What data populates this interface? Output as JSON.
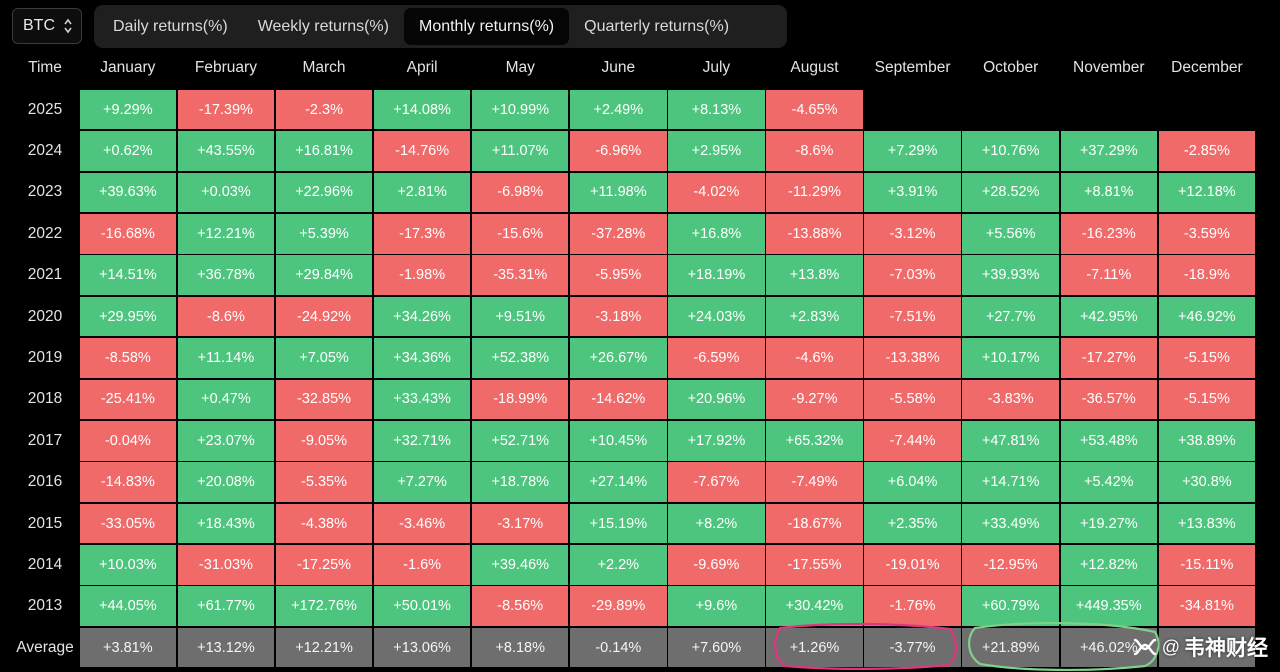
{
  "asset_selector": {
    "value": "BTC"
  },
  "tabs": [
    {
      "label": "Daily returns(%)",
      "active": false
    },
    {
      "label": "Weekly returns(%)",
      "active": false
    },
    {
      "label": "Monthly returns(%)",
      "active": true
    },
    {
      "label": "Quarterly returns(%)",
      "active": false
    }
  ],
  "table": {
    "time_header": "Time",
    "months": [
      "January",
      "February",
      "March",
      "April",
      "May",
      "June",
      "July",
      "August",
      "September",
      "October",
      "November",
      "December"
    ],
    "rows": [
      {
        "year": "2025",
        "values": [
          "+9.29%",
          "-17.39%",
          "-2.3%",
          "+14.08%",
          "+10.99%",
          "+2.49%",
          "+8.13%",
          "-4.65%",
          "",
          "",
          "",
          ""
        ]
      },
      {
        "year": "2024",
        "values": [
          "+0.62%",
          "+43.55%",
          "+16.81%",
          "-14.76%",
          "+11.07%",
          "-6.96%",
          "+2.95%",
          "-8.6%",
          "+7.29%",
          "+10.76%",
          "+37.29%",
          "-2.85%"
        ]
      },
      {
        "year": "2023",
        "values": [
          "+39.63%",
          "+0.03%",
          "+22.96%",
          "+2.81%",
          "-6.98%",
          "+11.98%",
          "-4.02%",
          "-11.29%",
          "+3.91%",
          "+28.52%",
          "+8.81%",
          "+12.18%"
        ]
      },
      {
        "year": "2022",
        "values": [
          "-16.68%",
          "+12.21%",
          "+5.39%",
          "-17.3%",
          "-15.6%",
          "-37.28%",
          "+16.8%",
          "-13.88%",
          "-3.12%",
          "+5.56%",
          "-16.23%",
          "-3.59%"
        ]
      },
      {
        "year": "2021",
        "values": [
          "+14.51%",
          "+36.78%",
          "+29.84%",
          "-1.98%",
          "-35.31%",
          "-5.95%",
          "+18.19%",
          "+13.8%",
          "-7.03%",
          "+39.93%",
          "-7.11%",
          "-18.9%"
        ]
      },
      {
        "year": "2020",
        "values": [
          "+29.95%",
          "-8.6%",
          "-24.92%",
          "+34.26%",
          "+9.51%",
          "-3.18%",
          "+24.03%",
          "+2.83%",
          "-7.51%",
          "+27.7%",
          "+42.95%",
          "+46.92%"
        ]
      },
      {
        "year": "2019",
        "values": [
          "-8.58%",
          "+11.14%",
          "+7.05%",
          "+34.36%",
          "+52.38%",
          "+26.67%",
          "-6.59%",
          "-4.6%",
          "-13.38%",
          "+10.17%",
          "-17.27%",
          "-5.15%"
        ]
      },
      {
        "year": "2018",
        "values": [
          "-25.41%",
          "+0.47%",
          "-32.85%",
          "+33.43%",
          "-18.99%",
          "-14.62%",
          "+20.96%",
          "-9.27%",
          "-5.58%",
          "-3.83%",
          "-36.57%",
          "-5.15%"
        ]
      },
      {
        "year": "2017",
        "values": [
          "-0.04%",
          "+23.07%",
          "-9.05%",
          "+32.71%",
          "+52.71%",
          "+10.45%",
          "+17.92%",
          "+65.32%",
          "-7.44%",
          "+47.81%",
          "+53.48%",
          "+38.89%"
        ]
      },
      {
        "year": "2016",
        "values": [
          "-14.83%",
          "+20.08%",
          "-5.35%",
          "+7.27%",
          "+18.78%",
          "+27.14%",
          "-7.67%",
          "-7.49%",
          "+6.04%",
          "+14.71%",
          "+5.42%",
          "+30.8%"
        ]
      },
      {
        "year": "2015",
        "values": [
          "-33.05%",
          "+18.43%",
          "-4.38%",
          "-3.46%",
          "-3.17%",
          "+15.19%",
          "+8.2%",
          "-18.67%",
          "+2.35%",
          "+33.49%",
          "+19.27%",
          "+13.83%"
        ]
      },
      {
        "year": "2014",
        "values": [
          "+10.03%",
          "-31.03%",
          "-17.25%",
          "-1.6%",
          "+39.46%",
          "+2.2%",
          "-9.69%",
          "-17.55%",
          "-19.01%",
          "-12.95%",
          "+12.82%",
          "-15.11%"
        ]
      },
      {
        "year": "2013",
        "values": [
          "+44.05%",
          "+61.77%",
          "+172.76%",
          "+50.01%",
          "-8.56%",
          "-29.89%",
          "+9.6%",
          "+30.42%",
          "-1.76%",
          "+60.79%",
          "+449.35%",
          "-34.81%"
        ]
      }
    ],
    "average": {
      "label": "Average",
      "values": [
        "+3.81%",
        "+13.12%",
        "+12.21%",
        "+13.06%",
        "+8.18%",
        "-0.14%",
        "+7.60%",
        "+1.26%",
        "-3.77%",
        "+21.89%",
        "+46.02%",
        ""
      ]
    }
  },
  "colors": {
    "positive": "#4ec57f",
    "negative": "#f06a6a",
    "average": "#6e6e6e",
    "highlight_pink": "#e0357f",
    "highlight_green": "#7fd18a"
  },
  "watermark": {
    "at": "@",
    "text": "韦神财经",
    "icon": "wechat-channels-icon"
  }
}
